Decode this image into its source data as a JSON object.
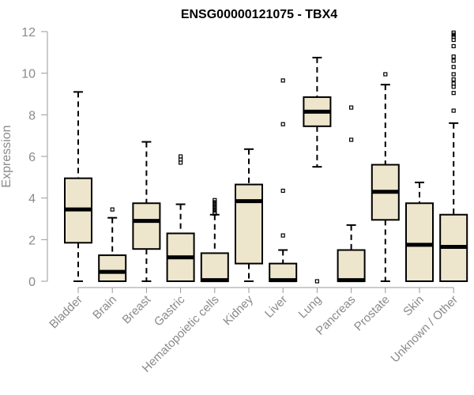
{
  "chart_data": {
    "type": "boxplot",
    "title": "ENSG00000121075 - TBX4",
    "xlabel": "",
    "ylabel": "Expression",
    "ylim": [
      0,
      12
    ],
    "yticks": [
      0,
      2,
      4,
      6,
      8,
      10,
      12
    ],
    "grid": false,
    "legend": "none",
    "colors": {
      "box_fill": "#ede6cd",
      "box_stroke": "#000000",
      "axis_text": "#8a8a8a"
    },
    "categories": [
      "Bladder",
      "Brain",
      "Breast",
      "Gastric",
      "Hematopoietic cells",
      "Kidney",
      "Liver",
      "Lung",
      "Pancreas",
      "Prostate",
      "Skin",
      "Unknown / Other"
    ],
    "boxes": [
      {
        "category": "Bladder",
        "whisker_low": 0.0,
        "q1": 1.85,
        "median": 3.45,
        "q3": 4.95,
        "whisker_high": 9.1,
        "outliers": []
      },
      {
        "category": "Brain",
        "whisker_low": 0.0,
        "q1": 0.0,
        "median": 0.45,
        "q3": 1.25,
        "whisker_high": 3.05,
        "outliers": [
          3.45
        ]
      },
      {
        "category": "Breast",
        "whisker_low": 0.0,
        "q1": 1.55,
        "median": 2.9,
        "q3": 3.75,
        "whisker_high": 6.7,
        "outliers": []
      },
      {
        "category": "Gastric",
        "whisker_low": 0.0,
        "q1": 0.0,
        "median": 1.15,
        "q3": 2.3,
        "whisker_high": 3.7,
        "outliers": [
          5.7,
          5.85,
          6.0
        ]
      },
      {
        "category": "Hematopoietic cells",
        "whisker_low": 0.0,
        "q1": 0.0,
        "median": 0.05,
        "q3": 1.35,
        "whisker_high": 3.2,
        "outliers": [
          3.25,
          3.3,
          3.4,
          3.5,
          3.6,
          3.7,
          3.8,
          3.9
        ]
      },
      {
        "category": "Kidney",
        "whisker_low": 0.0,
        "q1": 0.85,
        "median": 3.85,
        "q3": 4.65,
        "whisker_high": 6.35,
        "outliers": []
      },
      {
        "category": "Liver",
        "whisker_low": 0.0,
        "q1": 0.0,
        "median": 0.05,
        "q3": 0.85,
        "whisker_high": 1.5,
        "outliers": [
          2.2,
          4.35,
          7.55,
          9.65
        ]
      },
      {
        "category": "Lung",
        "whisker_low": 5.5,
        "q1": 7.45,
        "median": 8.15,
        "q3": 8.85,
        "whisker_high": 10.75,
        "outliers": [
          0.0
        ]
      },
      {
        "category": "Pancreas",
        "whisker_low": 0.0,
        "q1": 0.0,
        "median": 0.05,
        "q3": 1.5,
        "whisker_high": 2.7,
        "outliers": [
          6.8,
          8.35
        ]
      },
      {
        "category": "Prostate",
        "whisker_low": 0.0,
        "q1": 2.95,
        "median": 4.3,
        "q3": 5.6,
        "whisker_high": 9.45,
        "outliers": [
          9.95
        ]
      },
      {
        "category": "Skin",
        "whisker_low": 0.0,
        "q1": 0.0,
        "median": 1.75,
        "q3": 3.75,
        "whisker_high": 4.75,
        "outliers": []
      },
      {
        "category": "Unknown / Other",
        "whisker_low": 0.0,
        "q1": 0.0,
        "median": 1.65,
        "q3": 3.2,
        "whisker_high": 7.6,
        "outliers": [
          8.2,
          9.05,
          9.35,
          9.5,
          9.7,
          9.95,
          10.3,
          10.6,
          10.8,
          11.3,
          11.6,
          11.75,
          11.85,
          11.95
        ]
      }
    ]
  }
}
